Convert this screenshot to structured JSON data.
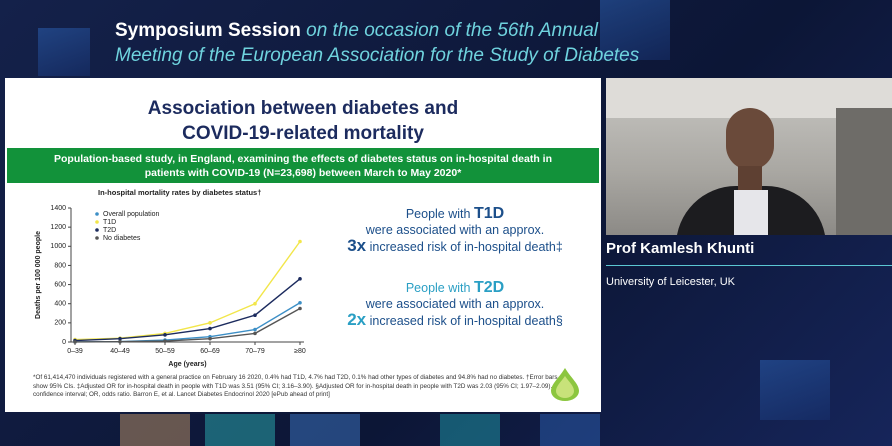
{
  "header": {
    "lead": "Symposium Session",
    "rest_line1": "on the occasion of the 56th Annual",
    "rest_line2": "Meeting of the European Association for the Study of Diabetes"
  },
  "slide": {
    "title_line1": "Association between diabetes and",
    "title_line2": "COVID-19-related mortality",
    "banner_line1": "Population-based study, in England, examining the effects of diabetes status on in-hospital death in",
    "banner_line2": "patients with COVID-19 (N=23,698) between March to May 2020*",
    "findings": [
      {
        "prefix": "People with",
        "group": "T1D",
        "line2": "were associated with an approx.",
        "ratio": "3x",
        "line3": "increased risk of in-hospital death‡"
      },
      {
        "prefix": "People with",
        "group": "T2D",
        "line2": "were associated with an approx.",
        "ratio": "2x",
        "line3": "increased risk of in-hospital death§"
      }
    ],
    "footnote": "*Of 61,414,470 individuals registered with a general practice on February 16 2020, 0.4% had T1D, 4.7% had T2D, 0.1% had other types of diabetes and 94.8% had no diabetes. †Error bars show 95% CIs. ‡Adjusted OR for in-hospital death in people with T1D was 3.51 (95% CI; 3.16–3.90). §Adjusted OR for in-hospital death in people with T2D was 2.03 (95% CI; 1.97–2.09). CI, confidence interval; OR, odds ratio. Barron E, et al. Lancet Diabetes Endocrinol 2020 [ePub ahead of print]"
  },
  "speaker": {
    "name": "Prof Kamlesh Khunti",
    "affiliation": "University of Leicester, UK"
  },
  "chart_data": {
    "type": "line",
    "title": "In-hospital mortality rates by diabetes status†",
    "x_label": "Age (years)",
    "y_label": "Deaths per 100 000 people",
    "categories": [
      "0–39",
      "40–49",
      "50–59",
      "60–69",
      "70–79",
      "≥80"
    ],
    "series": [
      {
        "name": "Overall population",
        "color": "#3d8fc6",
        "values": [
          2,
          5,
          20,
          55,
          130,
          410
        ]
      },
      {
        "name": "T1D",
        "color": "#f2e64a",
        "values": [
          25,
          40,
          90,
          200,
          400,
          1050
        ]
      },
      {
        "name": "T2D",
        "color": "#1c2b5e",
        "values": [
          15,
          35,
          75,
          140,
          280,
          660
        ]
      },
      {
        "name": "No diabetes",
        "color": "#555555",
        "values": [
          1,
          3,
          10,
          35,
          90,
          350
        ]
      }
    ],
    "ylim": [
      0,
      1400
    ],
    "yticks": [
      0,
      200,
      400,
      600,
      800,
      1000,
      1200,
      1400
    ]
  }
}
